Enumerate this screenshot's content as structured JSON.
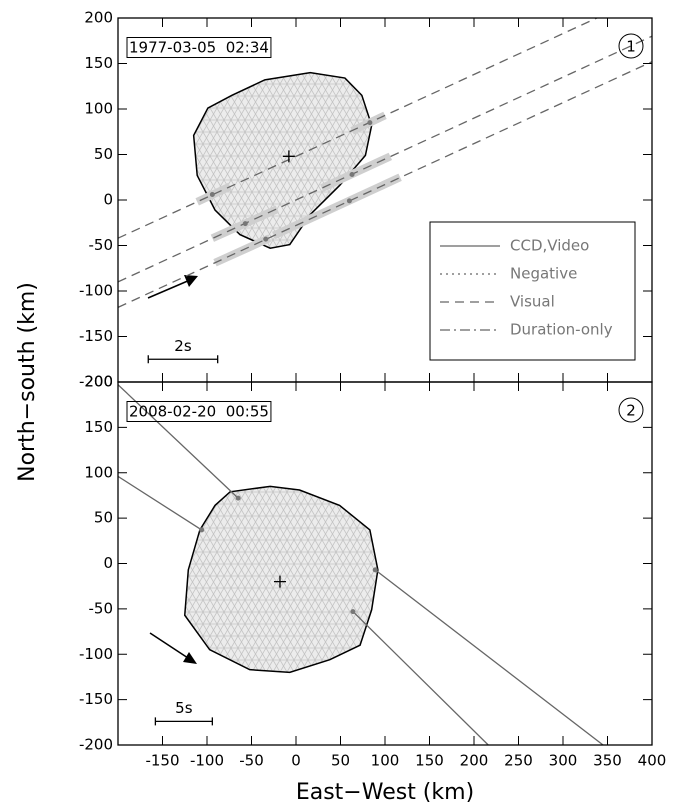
{
  "chart_data": [
    {
      "type": "occultation",
      "label": "1977-03-05  02:34",
      "panel": "1",
      "ylabel": "North−south (km)",
      "xlim": [
        -200,
        400
      ],
      "ylim": [
        -200,
        200
      ],
      "xticks": [
        -150,
        -100,
        -50,
        0,
        50,
        100,
        150,
        200,
        250,
        300,
        350,
        400
      ],
      "yticks": [
        -200,
        -150,
        -100,
        -50,
        0,
        50,
        100,
        150,
        200
      ],
      "show_xtick_labels": false,
      "outline": {
        "x": [
          -72,
          -35,
          16,
          55,
          74,
          85,
          78,
          49,
          16,
          -7,
          -29,
          -63,
          -91,
          -111,
          -115,
          -99
        ],
        "y": [
          115,
          132,
          140,
          134,
          115,
          82,
          49,
          16,
          -16,
          -49,
          -53,
          -38,
          -11,
          27,
          71,
          101
        ]
      },
      "center": {
        "x": -8,
        "y": 48
      },
      "chord_style": "dashed",
      "chords": [
        {
          "x": [
            -200,
            338
          ],
          "y": [
            -42,
            200
          ]
        },
        {
          "x": [
            -200,
            400
          ],
          "y": [
            -90,
            180
          ]
        },
        {
          "x": [
            -200,
            400
          ],
          "y": [
            -118,
            152
          ]
        }
      ],
      "segments": [
        {
          "x": [
            -111,
            -74
          ],
          "y": [
            -2,
            15
          ]
        },
        {
          "x": [
            63,
            100
          ],
          "y": [
            76,
            93
          ]
        },
        {
          "x": [
            -94,
            -21
          ],
          "y": [
            -42,
            -10
          ]
        },
        {
          "x": [
            29,
            106
          ],
          "y": [
            13,
            48
          ]
        },
        {
          "x": [
            -91,
            -30
          ],
          "y": [
            -69,
            -42
          ]
        },
        {
          "x": [
            -25,
            117
          ],
          "y": [
            -39,
            25
          ]
        }
      ],
      "dots": {
        "x": [
          -94,
          83,
          -57,
          63,
          -34,
          60
        ],
        "y": [
          6,
          85,
          -26,
          28,
          -43,
          -1
        ]
      },
      "scale_bar": {
        "label": "2s",
        "x": [
          -166,
          -88
        ],
        "y": -175
      },
      "legend": [
        {
          "name": "CCD,Video",
          "style": "solid"
        },
        {
          "name": "Negative",
          "style": "dotted"
        },
        {
          "name": "Visual",
          "style": "dashed"
        },
        {
          "name": "Duration-only",
          "style": "dashdot"
        }
      ]
    },
    {
      "type": "occultation",
      "label": "2008-02-20  00:55",
      "panel": "2",
      "xlabel": "East−West (km)",
      "xlim": [
        -200,
        400
      ],
      "ylim": [
        -200,
        200
      ],
      "xticks": [
        -150,
        -100,
        -50,
        0,
        50,
        100,
        150,
        200,
        250,
        300,
        350,
        400
      ],
      "yticks": [
        -200,
        -150,
        -100,
        -50,
        0,
        50,
        100,
        150,
        200
      ],
      "show_xtick_labels": true,
      "outline": {
        "x": [
          -74,
          -29,
          4,
          49,
          83,
          92,
          85,
          72,
          38,
          -7,
          -52,
          -97,
          -125,
          -121,
          -108,
          -91
        ],
        "y": [
          79,
          85,
          81,
          64,
          37,
          -7,
          -51,
          -90,
          -106,
          -120,
          -117,
          -95,
          -57,
          -7,
          37,
          64
        ]
      },
      "center": {
        "x": -18,
        "y": -20
      },
      "chord_style": "solid",
      "chords": [
        {
          "x": [
            -200,
            -65
          ],
          "y": [
            197,
            72
          ]
        },
        {
          "x": [
            64,
            216
          ],
          "y": [
            -53,
            -200
          ]
        },
        {
          "x": [
            -200,
            -106
          ],
          "y": [
            96,
            37
          ]
        },
        {
          "x": [
            89,
            345
          ],
          "y": [
            -7,
            -200
          ]
        }
      ],
      "segments": [],
      "dots": {
        "x": [
          -65,
          64,
          -106,
          89
        ],
        "y": [
          72,
          -53,
          37,
          -7
        ]
      },
      "scale_bar": {
        "label": "5s",
        "x": [
          -158,
          -94
        ],
        "y": -174
      }
    }
  ]
}
